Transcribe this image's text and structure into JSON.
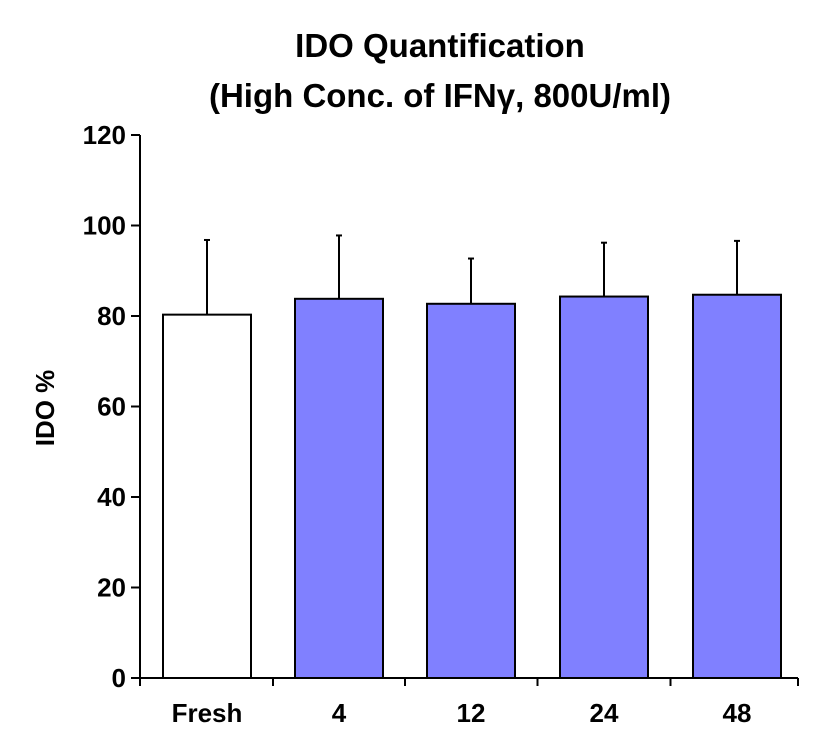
{
  "chart_data": {
    "type": "bar",
    "title_lines": [
      "IDO Quantification",
      "(High Conc. of IFNγ, 800U/ml)"
    ],
    "xlabel": "",
    "ylabel": "IDO %",
    "categories": [
      "Fresh",
      "4",
      "12",
      "24",
      "48"
    ],
    "values": [
      80.3,
      83.8,
      82.7,
      84.3,
      84.7
    ],
    "error_upper": [
      96.8,
      97.8,
      92.7,
      96.2,
      96.6
    ],
    "ylim": [
      0,
      120
    ],
    "yticks": [
      "0",
      "20",
      "40",
      "60",
      "80",
      "100",
      "120"
    ],
    "grid": false,
    "legend": "none",
    "bar_fill_colors": [
      "#ffffff",
      "#8080ff",
      "#8080ff",
      "#8080ff",
      "#8080ff"
    ],
    "bar_edge_color": "#000000",
    "axis_color": "#000000"
  }
}
